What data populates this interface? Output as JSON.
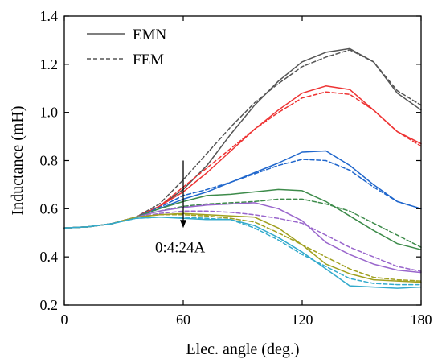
{
  "chart_data": {
    "type": "line",
    "xlabel": "Elec. angle (deg.)",
    "ylabel": "Inductance (mH)",
    "xlim": [
      0,
      180
    ],
    "ylim": [
      0.2,
      1.4
    ],
    "xticks": [
      "0",
      "60",
      "120",
      "180"
    ],
    "xtick_values": [
      0,
      60,
      120,
      180
    ],
    "yticks": [
      "0.2",
      "0.4",
      "0.6",
      "0.8",
      "1.0",
      "1.2",
      "1.4"
    ],
    "ytick_values": [
      0.2,
      0.4,
      0.6,
      0.8,
      1.0,
      1.2,
      1.4
    ],
    "grid": false,
    "legend_position": "top-left",
    "legend": [
      {
        "label": "EMN",
        "style": "solid"
      },
      {
        "label": "FEM",
        "style": "dashed"
      }
    ],
    "annotation": {
      "text": "0:4:24A",
      "arrow_x": 60,
      "arrow_from_y": 0.8,
      "arrow_to_y": 0.52
    },
    "series": [
      {
        "color": "#555555",
        "style": "solid",
        "x": [
          0,
          12,
          24,
          36,
          48,
          60,
          72,
          84,
          96,
          108,
          120,
          132,
          144,
          156,
          168,
          180
        ],
        "y": [
          0.52,
          0.525,
          0.538,
          0.565,
          0.61,
          0.68,
          0.78,
          0.91,
          1.03,
          1.13,
          1.21,
          1.25,
          1.265,
          1.21,
          1.08,
          1.01
        ]
      },
      {
        "color": "#555555",
        "style": "dashed",
        "x": [
          0,
          12,
          24,
          36,
          48,
          60,
          72,
          84,
          96,
          108,
          120,
          132,
          144,
          156,
          168,
          180
        ],
        "y": [
          0.52,
          0.525,
          0.538,
          0.565,
          0.62,
          0.72,
          0.83,
          0.94,
          1.04,
          1.12,
          1.19,
          1.23,
          1.26,
          1.21,
          1.09,
          1.03
        ]
      },
      {
        "color": "#ee3333",
        "style": "solid",
        "x": [
          0,
          12,
          24,
          36,
          48,
          60,
          72,
          84,
          96,
          108,
          120,
          132,
          144,
          156,
          168,
          180
        ],
        "y": [
          0.52,
          0.525,
          0.538,
          0.565,
          0.61,
          0.67,
          0.75,
          0.84,
          0.93,
          1.01,
          1.08,
          1.11,
          1.095,
          1.01,
          0.92,
          0.87
        ]
      },
      {
        "color": "#ee3333",
        "style": "dashed",
        "x": [
          0,
          12,
          24,
          36,
          48,
          60,
          72,
          84,
          96,
          108,
          120,
          132,
          144,
          156,
          168,
          180
        ],
        "y": [
          0.52,
          0.525,
          0.538,
          0.565,
          0.61,
          0.69,
          0.77,
          0.85,
          0.93,
          1.0,
          1.06,
          1.085,
          1.075,
          1.01,
          0.92,
          0.86
        ]
      },
      {
        "color": "#1f66cc",
        "style": "solid",
        "x": [
          0,
          12,
          24,
          36,
          48,
          60,
          72,
          84,
          96,
          108,
          120,
          132,
          144,
          156,
          168,
          180
        ],
        "y": [
          0.52,
          0.525,
          0.538,
          0.565,
          0.6,
          0.64,
          0.67,
          0.71,
          0.75,
          0.79,
          0.835,
          0.84,
          0.78,
          0.7,
          0.63,
          0.6
        ]
      },
      {
        "color": "#1f66cc",
        "style": "dashed",
        "x": [
          0,
          12,
          24,
          36,
          48,
          60,
          72,
          84,
          96,
          108,
          120,
          132,
          144,
          156,
          168,
          180
        ],
        "y": [
          0.52,
          0.525,
          0.538,
          0.565,
          0.605,
          0.655,
          0.68,
          0.71,
          0.745,
          0.78,
          0.805,
          0.8,
          0.76,
          0.69,
          0.63,
          0.6
        ]
      },
      {
        "color": "#3d8b4a",
        "style": "solid",
        "x": [
          0,
          12,
          24,
          36,
          48,
          60,
          72,
          84,
          96,
          108,
          120,
          132,
          144,
          156,
          168,
          180
        ],
        "y": [
          0.52,
          0.525,
          0.538,
          0.565,
          0.6,
          0.63,
          0.655,
          0.66,
          0.67,
          0.68,
          0.675,
          0.63,
          0.57,
          0.51,
          0.455,
          0.43
        ]
      },
      {
        "color": "#3d8b4a",
        "style": "dashed",
        "x": [
          0,
          12,
          24,
          36,
          48,
          60,
          72,
          84,
          96,
          108,
          120,
          132,
          144,
          156,
          168,
          180
        ],
        "y": [
          0.52,
          0.525,
          0.538,
          0.565,
          0.59,
          0.61,
          0.62,
          0.625,
          0.63,
          0.64,
          0.64,
          0.62,
          0.59,
          0.54,
          0.49,
          0.44
        ]
      },
      {
        "color": "#9966cc",
        "style": "solid",
        "x": [
          0,
          12,
          24,
          36,
          48,
          60,
          72,
          84,
          96,
          108,
          120,
          132,
          144,
          156,
          168,
          180
        ],
        "y": [
          0.52,
          0.525,
          0.538,
          0.565,
          0.59,
          0.605,
          0.615,
          0.62,
          0.625,
          0.6,
          0.55,
          0.46,
          0.41,
          0.37,
          0.345,
          0.335
        ]
      },
      {
        "color": "#9966cc",
        "style": "dashed",
        "x": [
          0,
          12,
          24,
          36,
          48,
          60,
          72,
          84,
          96,
          108,
          120,
          132,
          144,
          156,
          168,
          180
        ],
        "y": [
          0.52,
          0.525,
          0.538,
          0.565,
          0.58,
          0.59,
          0.59,
          0.585,
          0.575,
          0.56,
          0.54,
          0.49,
          0.44,
          0.4,
          0.36,
          0.34
        ]
      },
      {
        "color": "#a0a020",
        "style": "solid",
        "x": [
          0,
          12,
          24,
          36,
          48,
          60,
          72,
          84,
          96,
          108,
          120,
          132,
          144,
          156,
          168,
          180
        ],
        "y": [
          0.52,
          0.525,
          0.538,
          0.565,
          0.575,
          0.58,
          0.575,
          0.57,
          0.565,
          0.52,
          0.45,
          0.37,
          0.33,
          0.305,
          0.3,
          0.295
        ]
      },
      {
        "color": "#a0a020",
        "style": "dashed",
        "x": [
          0,
          12,
          24,
          36,
          48,
          60,
          72,
          84,
          96,
          108,
          120,
          132,
          144,
          156,
          168,
          180
        ],
        "y": [
          0.52,
          0.525,
          0.538,
          0.565,
          0.575,
          0.575,
          0.57,
          0.56,
          0.545,
          0.5,
          0.45,
          0.4,
          0.35,
          0.315,
          0.305,
          0.3
        ]
      },
      {
        "color": "#33aacc",
        "style": "solid",
        "x": [
          0,
          12,
          24,
          36,
          48,
          60,
          72,
          84,
          96,
          108,
          120,
          132,
          144,
          156,
          168,
          180
        ],
        "y": [
          0.52,
          0.525,
          0.538,
          0.56,
          0.565,
          0.56,
          0.555,
          0.555,
          0.53,
          0.48,
          0.42,
          0.35,
          0.28,
          0.275,
          0.27,
          0.275
        ]
      },
      {
        "color": "#33aacc",
        "style": "dashed",
        "x": [
          0,
          12,
          24,
          36,
          48,
          60,
          72,
          84,
          96,
          108,
          120,
          132,
          144,
          156,
          168,
          180
        ],
        "y": [
          0.52,
          0.525,
          0.538,
          0.56,
          0.565,
          0.565,
          0.56,
          0.555,
          0.52,
          0.47,
          0.41,
          0.36,
          0.31,
          0.29,
          0.285,
          0.285
        ]
      }
    ]
  }
}
